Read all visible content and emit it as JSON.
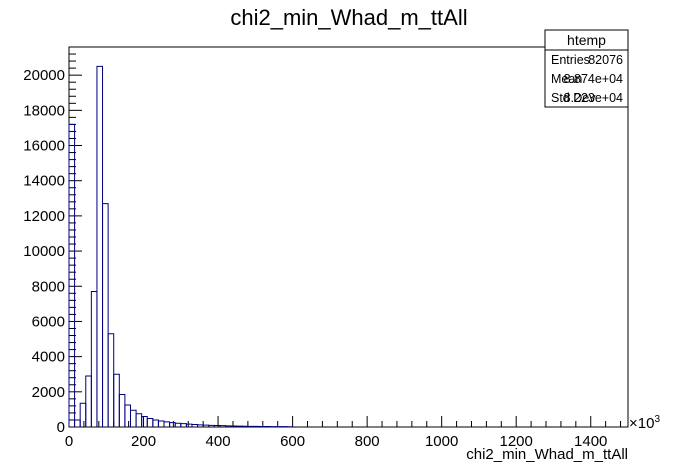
{
  "chart_data": {
    "type": "bar",
    "style": "step-histogram",
    "title": "chi2_min_Whad_m_ttAll",
    "xlabel": "chi2_min_Whad_m_ttAll",
    "x_multiplier_label": "×10",
    "x_multiplier_exponent": "3",
    "ylabel": "",
    "xlim": [
      0,
      1500
    ],
    "ylim": [
      0,
      21600
    ],
    "x_ticks": [
      0,
      200,
      400,
      600,
      800,
      1000,
      1200,
      1400
    ],
    "y_ticks": [
      0,
      2000,
      4000,
      6000,
      8000,
      10000,
      12000,
      14000,
      16000,
      18000,
      20000
    ],
    "line_color": "#000080",
    "bin_width": 15,
    "bin_start": 0,
    "values": [
      17200,
      400,
      1350,
      2900,
      7700,
      20500,
      12700,
      5300,
      3000,
      1850,
      1250,
      950,
      750,
      600,
      480,
      400,
      340,
      290,
      250,
      210,
      190,
      160,
      140,
      120,
      110,
      95,
      85,
      75,
      65,
      55,
      48,
      42,
      38,
      34,
      30,
      26,
      22,
      20,
      18,
      15
    ],
    "stats": {
      "name": "htemp",
      "rows": [
        {
          "label": "Entries",
          "value": "82076"
        },
        {
          "label": "Mean",
          "value": "8.874e+04"
        },
        {
          "label": "Std Dev",
          "value": "8.223e+04"
        }
      ]
    }
  }
}
